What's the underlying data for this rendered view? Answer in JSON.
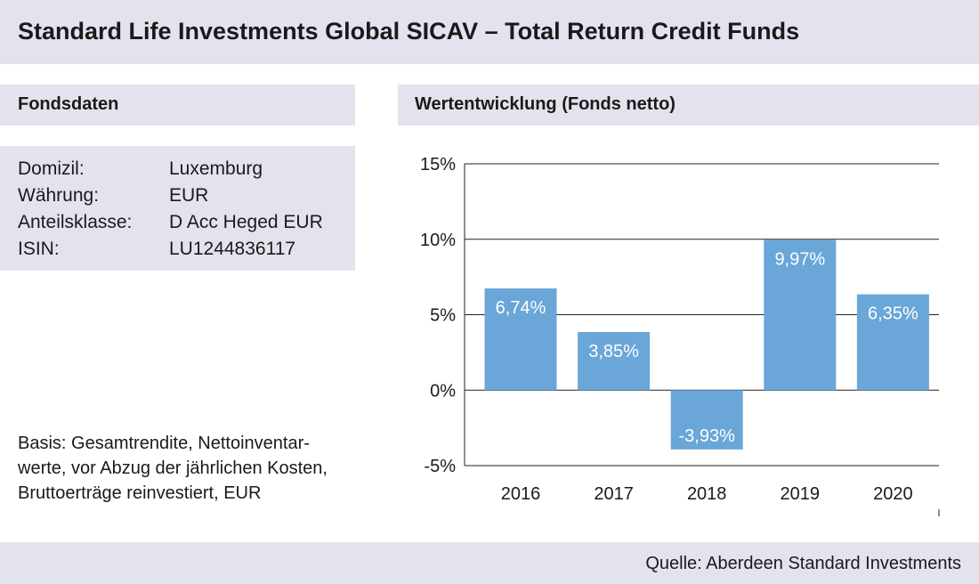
{
  "header": {
    "title": "Standard Life Investments Global SICAV – Total Return Credit Funds"
  },
  "fondsdaten": {
    "heading": "Fondsdaten",
    "rows": [
      {
        "label": "Domizil:",
        "value": "Luxemburg"
      },
      {
        "label": "Währung:",
        "value": "EUR"
      },
      {
        "label": "Anteilsklasse:",
        "value": "D Acc Heged EUR"
      },
      {
        "label": "ISIN:",
        "value": "LU1244836117"
      }
    ],
    "basis_lines": [
      "Basis: Gesamtrendite, Nettoinventar-",
      "werte, vor Abzug der jährlichen Kosten,",
      "Bruttoerträge reinvestiert, EUR"
    ]
  },
  "chart_heading": "Wertentwicklung (Fonds netto)",
  "chart_data": {
    "type": "bar",
    "title": "Wertentwicklung (Fonds netto)",
    "categories": [
      "2016",
      "2017",
      "2018",
      "2019",
      "2020"
    ],
    "values": [
      6.74,
      3.85,
      -3.93,
      9.97,
      6.35
    ],
    "value_labels": [
      "6,74%",
      "3,85%",
      "-3,93%",
      "9,97%",
      "6,35%"
    ],
    "ylim": [
      -5,
      15
    ],
    "yticks": [
      15,
      10,
      5,
      0,
      -5
    ],
    "ytick_labels": [
      "15%",
      "10%",
      "5%",
      "0%",
      "-5%"
    ],
    "grid": true,
    "legend": "none",
    "bar_color": "#6aa6d8"
  },
  "footer": {
    "source": "Quelle: Aberdeen Standard Investments"
  }
}
